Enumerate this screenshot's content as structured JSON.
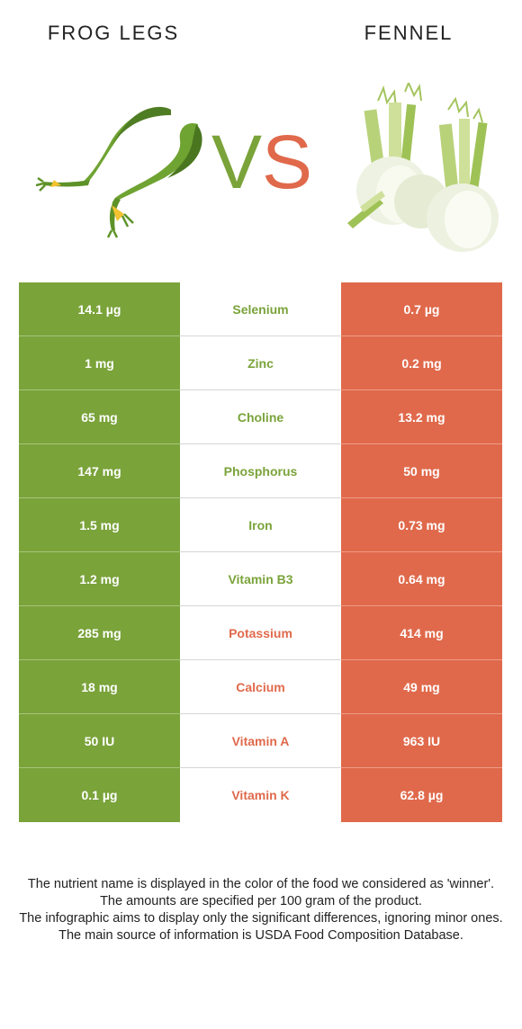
{
  "header": {
    "left_food": "FROG LEGS",
    "right_food": "FENNEL",
    "vs_v": "V",
    "vs_s": "S"
  },
  "colors": {
    "left": "#7aa33a",
    "right": "#e0694b"
  },
  "rows": [
    {
      "nutrient": "Selenium",
      "left": "14.1 µg",
      "right": "0.7 µg",
      "winner": "left"
    },
    {
      "nutrient": "Zinc",
      "left": "1 mg",
      "right": "0.2 mg",
      "winner": "left"
    },
    {
      "nutrient": "Choline",
      "left": "65 mg",
      "right": "13.2 mg",
      "winner": "left"
    },
    {
      "nutrient": "Phosphorus",
      "left": "147 mg",
      "right": "50 mg",
      "winner": "left"
    },
    {
      "nutrient": "Iron",
      "left": "1.5 mg",
      "right": "0.73 mg",
      "winner": "left"
    },
    {
      "nutrient": "Vitamin B3",
      "left": "1.2 mg",
      "right": "0.64 mg",
      "winner": "left"
    },
    {
      "nutrient": "Potassium",
      "left": "285 mg",
      "right": "414 mg",
      "winner": "right"
    },
    {
      "nutrient": "Calcium",
      "left": "18 mg",
      "right": "49 mg",
      "winner": "right"
    },
    {
      "nutrient": "Vitamin A",
      "left": "50 IU",
      "right": "963 IU",
      "winner": "right"
    },
    {
      "nutrient": "Vitamin K",
      "left": "0.1 µg",
      "right": "62.8 µg",
      "winner": "right"
    }
  ],
  "notes": [
    "The nutrient name is displayed in the color of the food we considered as 'winner'.",
    "The amounts are specified per 100 gram of the product.",
    "The infographic aims to display only the significant differences, ignoring minor ones.",
    "The main source of information is USDA Food Composition Database."
  ]
}
